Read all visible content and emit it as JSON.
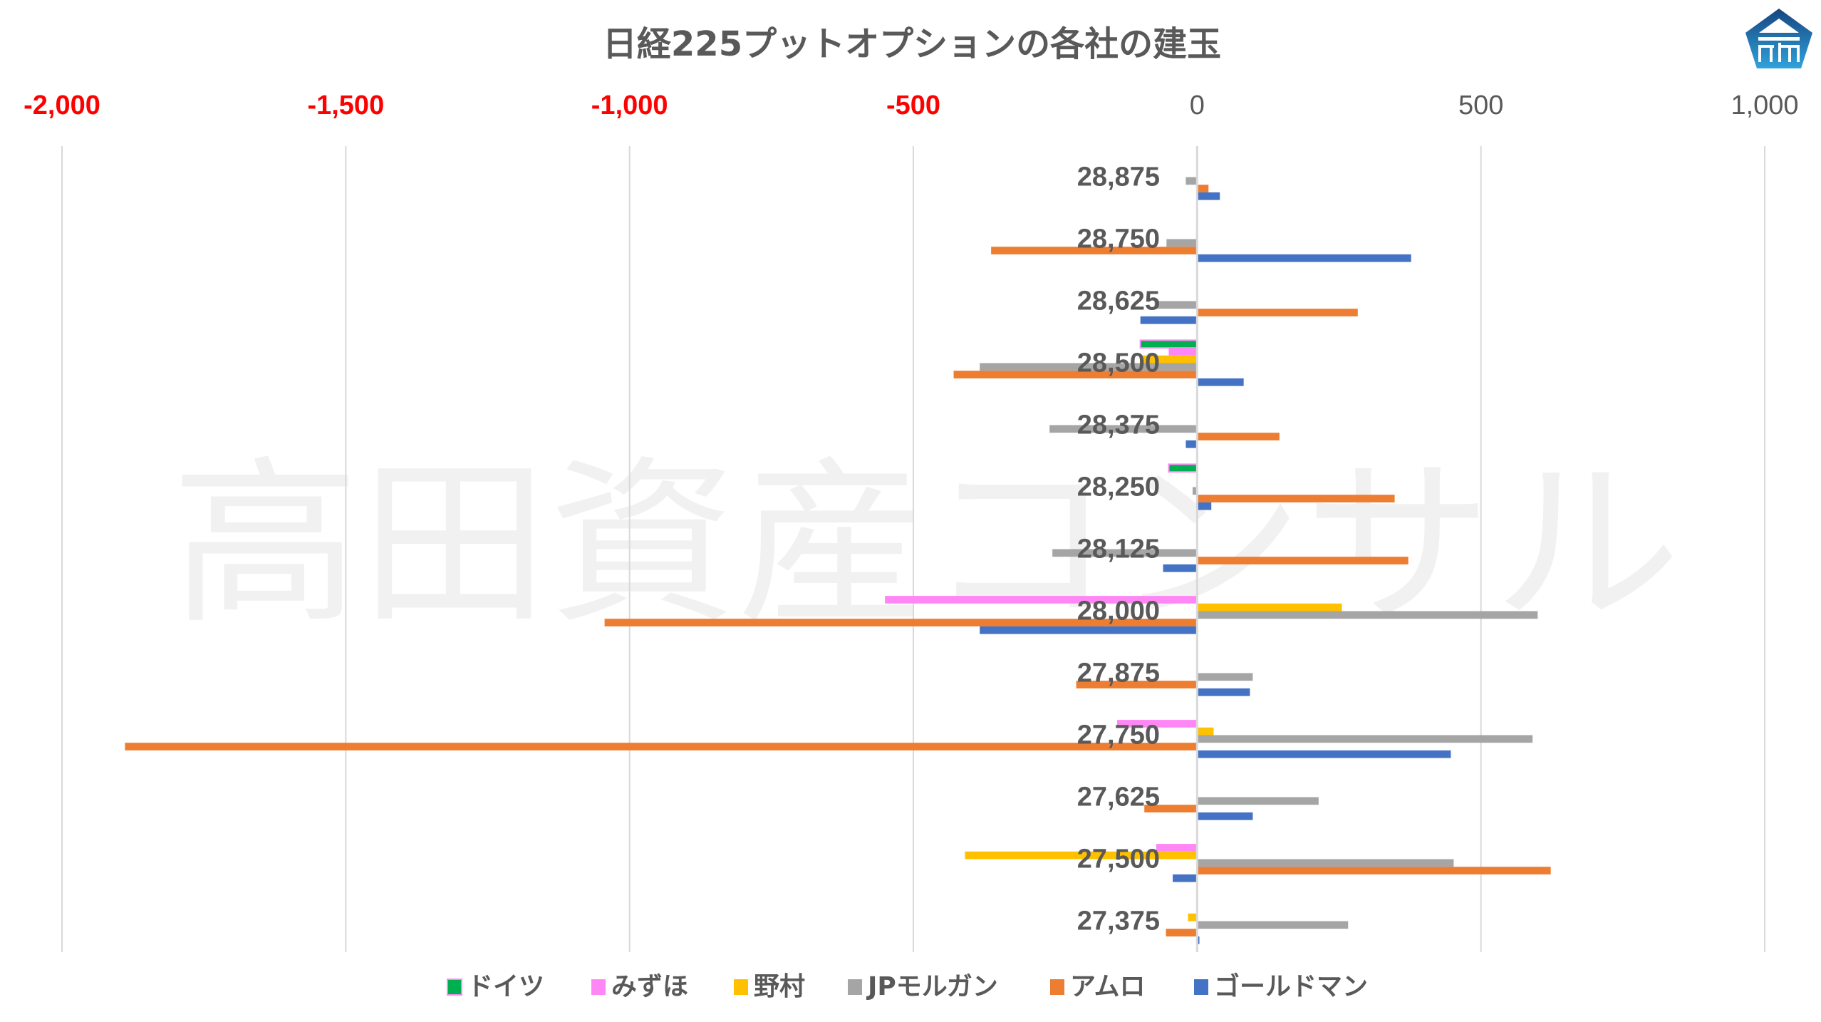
{
  "chart_data": {
    "type": "bar",
    "orientation": "horizontal",
    "title": "日経225プットオプションの各社の建玉",
    "xlabel": "",
    "ylabel": "",
    "xlim": [
      -2000,
      1000
    ],
    "x_ticks": [
      {
        "value": -2000,
        "label": "-2,000",
        "color": "#ff0000"
      },
      {
        "value": -1500,
        "label": "-1,500",
        "color": "#ff0000"
      },
      {
        "value": -1000,
        "label": "-1,000",
        "color": "#ff0000"
      },
      {
        "value": -500,
        "label": "-500",
        "color": "#ff0000"
      },
      {
        "value": 0,
        "label": "0",
        "color": "#595959"
      },
      {
        "value": 500,
        "label": "500",
        "color": "#595959"
      },
      {
        "value": 1000,
        "label": "1,000",
        "color": "#595959"
      }
    ],
    "x_axis_position": "top",
    "grid": "vertical",
    "legend_position": "bottom",
    "categories": [
      "28,875",
      "28,750",
      "28,625",
      "28,500",
      "28,375",
      "28,250",
      "28,125",
      "28,000",
      "27,875",
      "27,750",
      "27,625",
      "27,500",
      "27,375"
    ],
    "series": [
      {
        "name": "ドイツ",
        "color": "#00b050",
        "border": "#ff87f5",
        "values": [
          0,
          0,
          0,
          -100,
          0,
          -50,
          0,
          0,
          0,
          0,
          0,
          0,
          0
        ]
      },
      {
        "name": "みずほ",
        "color": "#ff87f5",
        "values": [
          0,
          0,
          0,
          -50,
          0,
          1,
          0,
          -550,
          0,
          -141,
          0,
          -72,
          0
        ]
      },
      {
        "name": "野村",
        "color": "#ffc000",
        "values": [
          0,
          -2,
          0,
          -100,
          0,
          0,
          0,
          255,
          0,
          29,
          0,
          -409,
          -16
        ]
      },
      {
        "name": "JPモルガン",
        "color": "#a5a5a5",
        "values": [
          -20,
          -54,
          -75,
          -383,
          -260,
          -8,
          -255,
          600,
          98,
          591,
          214,
          452,
          266
        ]
      },
      {
        "name": "アムロ",
        "color": "#ed7d31",
        "values": [
          20,
          -363,
          283,
          -429,
          145,
          348,
          372,
          -1044,
          -213,
          -1889,
          -93,
          623,
          -55
        ]
      },
      {
        "name": "ゴールドマン",
        "color": "#4472c4",
        "values": [
          40,
          377,
          -100,
          82,
          -20,
          25,
          -60,
          -383,
          93,
          447,
          98,
          -43,
          4
        ]
      }
    ],
    "watermark": "高田資産コンサル"
  },
  "logo": {
    "icon": "takata-logo-icon",
    "colors": [
      "#17457f",
      "#2fa2dc"
    ]
  }
}
